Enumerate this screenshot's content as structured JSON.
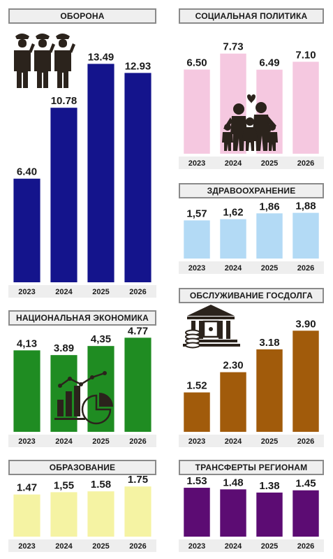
{
  "icons": {
    "defense": "soldiers-saluting-icon",
    "social": "family-heart-icon",
    "economy": "growth-chart-icon",
    "debt": "bank-coins-icon"
  },
  "chart_data": [
    {
      "id": "defense",
      "type": "bar",
      "title": "ОБОРОНА",
      "categories": [
        "2023",
        "2024",
        "2025",
        "2026"
      ],
      "values": [
        6.4,
        10.78,
        13.49,
        12.93
      ],
      "labels": [
        "6.40",
        "10.78",
        "13.49",
        "12.93"
      ],
      "color": "#14148c",
      "ylim": [
        0,
        14.5
      ]
    },
    {
      "id": "social",
      "type": "bar",
      "title": "СОЦИАЛЬНАЯ ПОЛИТИКА",
      "categories": [
        "2023",
        "2024",
        "2025",
        "2026"
      ],
      "values": [
        6.5,
        7.73,
        6.49,
        7.1
      ],
      "labels": [
        "6.50",
        "7.73",
        "6.49",
        "7.10"
      ],
      "color": "#f5c8e0",
      "ylim": [
        0,
        8.2
      ]
    },
    {
      "id": "health",
      "type": "bar",
      "title": "ЗДРАВООХРАНЕНИЕ",
      "categories": [
        "2023",
        "2024",
        "2025",
        "2026"
      ],
      "values": [
        1.57,
        1.62,
        1.86,
        1.88
      ],
      "labels": [
        "1,57",
        "1,62",
        "1,86",
        "1,88"
      ],
      "color": "#b3daf5",
      "ylim": [
        0,
        2.3
      ]
    },
    {
      "id": "economy",
      "type": "bar",
      "title": "НАЦИОНАЛЬНАЯ ЭКОНОМИКА",
      "categories": [
        "2023",
        "2024",
        "2025",
        "2026"
      ],
      "values": [
        4.13,
        3.89,
        4.35,
        4.77
      ],
      "labels": [
        "4,13",
        "3.89",
        "4,35",
        "4.77"
      ],
      "color": "#1f8c22",
      "ylim": [
        0,
        5.1
      ]
    },
    {
      "id": "debt",
      "type": "bar",
      "title": "ОБСЛУЖИВАНИЕ ГОСДОЛГА",
      "categories": [
        "2023",
        "2024",
        "2025",
        "2026"
      ],
      "values": [
        1.52,
        2.3,
        3.18,
        3.9
      ],
      "labels": [
        "1.52",
        "2.30",
        "3.18",
        "3.90"
      ],
      "color": "#a15b0b",
      "ylim": [
        0,
        4.15
      ]
    },
    {
      "id": "education",
      "type": "bar",
      "title": "ОБРАЗОВАНИЕ",
      "categories": [
        "2023",
        "2024",
        "2025",
        "2026"
      ],
      "values": [
        1.47,
        1.55,
        1.58,
        1.75
      ],
      "labels": [
        "1.47",
        "1,55",
        "1.58",
        "1.75"
      ],
      "color": "#f5f3a3",
      "ylim": [
        0,
        1.95
      ]
    },
    {
      "id": "transfers",
      "type": "bar",
      "title": "ТРАНСФЕРТЫ РЕГИОНАМ",
      "categories": [
        "2023",
        "2024",
        "2025",
        "2026"
      ],
      "values": [
        1.53,
        1.48,
        1.38,
        1.45
      ],
      "labels": [
        "1.53",
        "1.48",
        "1.38",
        "1.45"
      ],
      "color": "#5c0c73",
      "ylim": [
        0,
        1.75
      ]
    }
  ]
}
